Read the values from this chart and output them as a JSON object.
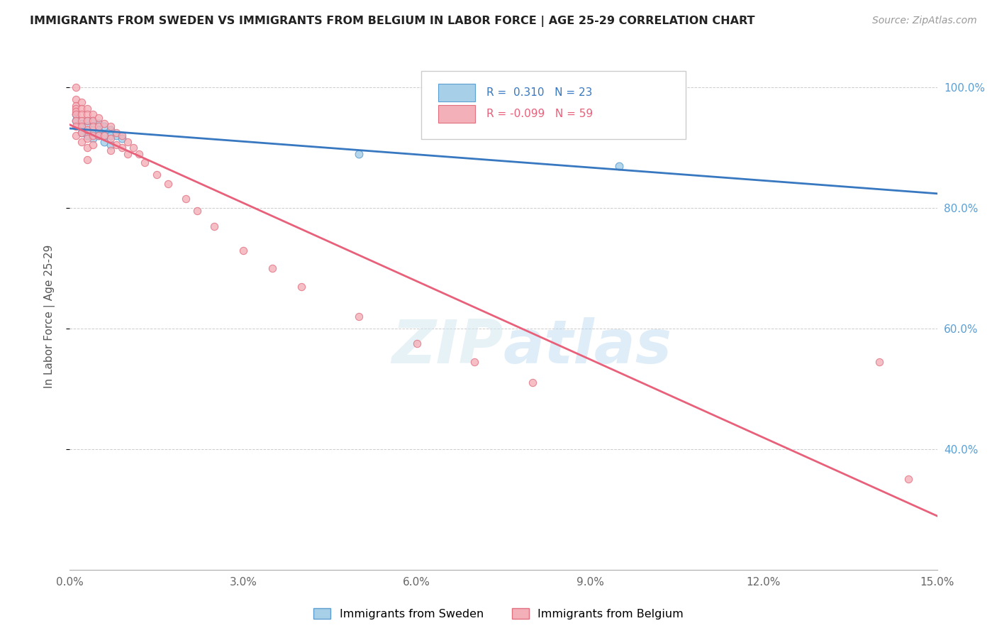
{
  "title": "IMMIGRANTS FROM SWEDEN VS IMMIGRANTS FROM BELGIUM IN LABOR FORCE | AGE 25-29 CORRELATION CHART",
  "source": "Source: ZipAtlas.com",
  "ylabel_label": "In Labor Force | Age 25-29",
  "xlim": [
    0.0,
    0.15
  ],
  "ylim": [
    0.2,
    1.04
  ],
  "xticks": [
    0.0,
    0.03,
    0.06,
    0.09,
    0.12,
    0.15
  ],
  "xtick_labels": [
    "0.0%",
    "3.0%",
    "6.0%",
    "9.0%",
    "12.0%",
    "15.0%"
  ],
  "yticks": [
    0.4,
    0.6,
    0.8,
    1.0
  ],
  "ytick_labels": [
    "40.0%",
    "60.0%",
    "80.0%",
    "100.0%"
  ],
  "sweden_color": "#a8cfe8",
  "belgium_color": "#f4b0b8",
  "sweden_edge": "#5c9ecf",
  "belgium_edge": "#e07080",
  "trend_sweden_color": "#3878c0",
  "trend_belgium_color": "#e8607a",
  "r_sweden": 0.31,
  "n_sweden": 23,
  "r_belgium": -0.099,
  "n_belgium": 59,
  "sweden_x": [
    0.001,
    0.001,
    0.002,
    0.002,
    0.003,
    0.003,
    0.003,
    0.004,
    0.004,
    0.004,
    0.005,
    0.005,
    0.005,
    0.006,
    0.006,
    0.006,
    0.007,
    0.007,
    0.007,
    0.008,
    0.009,
    0.05,
    0.095
  ],
  "sweden_y": [
    0.955,
    0.945,
    0.94,
    0.925,
    0.945,
    0.935,
    0.92,
    0.945,
    0.93,
    0.915,
    0.94,
    0.93,
    0.92,
    0.935,
    0.92,
    0.91,
    0.93,
    0.92,
    0.905,
    0.92,
    0.915,
    0.89,
    0.87
  ],
  "belgium_x": [
    0.001,
    0.001,
    0.001,
    0.001,
    0.001,
    0.001,
    0.001,
    0.001,
    0.001,
    0.002,
    0.002,
    0.002,
    0.002,
    0.002,
    0.002,
    0.002,
    0.003,
    0.003,
    0.003,
    0.003,
    0.003,
    0.003,
    0.003,
    0.004,
    0.004,
    0.004,
    0.004,
    0.004,
    0.005,
    0.005,
    0.005,
    0.006,
    0.006,
    0.007,
    0.007,
    0.007,
    0.008,
    0.008,
    0.009,
    0.009,
    0.01,
    0.01,
    0.011,
    0.012,
    0.013,
    0.015,
    0.017,
    0.02,
    0.022,
    0.025,
    0.03,
    0.035,
    0.04,
    0.05,
    0.06,
    0.07,
    0.08,
    0.14,
    0.145
  ],
  "belgium_y": [
    1.0,
    0.98,
    0.97,
    0.965,
    0.96,
    0.955,
    0.945,
    0.935,
    0.92,
    0.975,
    0.965,
    0.955,
    0.945,
    0.935,
    0.925,
    0.91,
    0.965,
    0.955,
    0.945,
    0.93,
    0.915,
    0.9,
    0.88,
    0.955,
    0.945,
    0.935,
    0.92,
    0.905,
    0.95,
    0.935,
    0.92,
    0.94,
    0.92,
    0.935,
    0.915,
    0.895,
    0.925,
    0.905,
    0.92,
    0.9,
    0.91,
    0.89,
    0.9,
    0.89,
    0.875,
    0.855,
    0.84,
    0.815,
    0.795,
    0.77,
    0.73,
    0.7,
    0.67,
    0.62,
    0.575,
    0.545,
    0.51,
    0.545,
    0.35
  ]
}
